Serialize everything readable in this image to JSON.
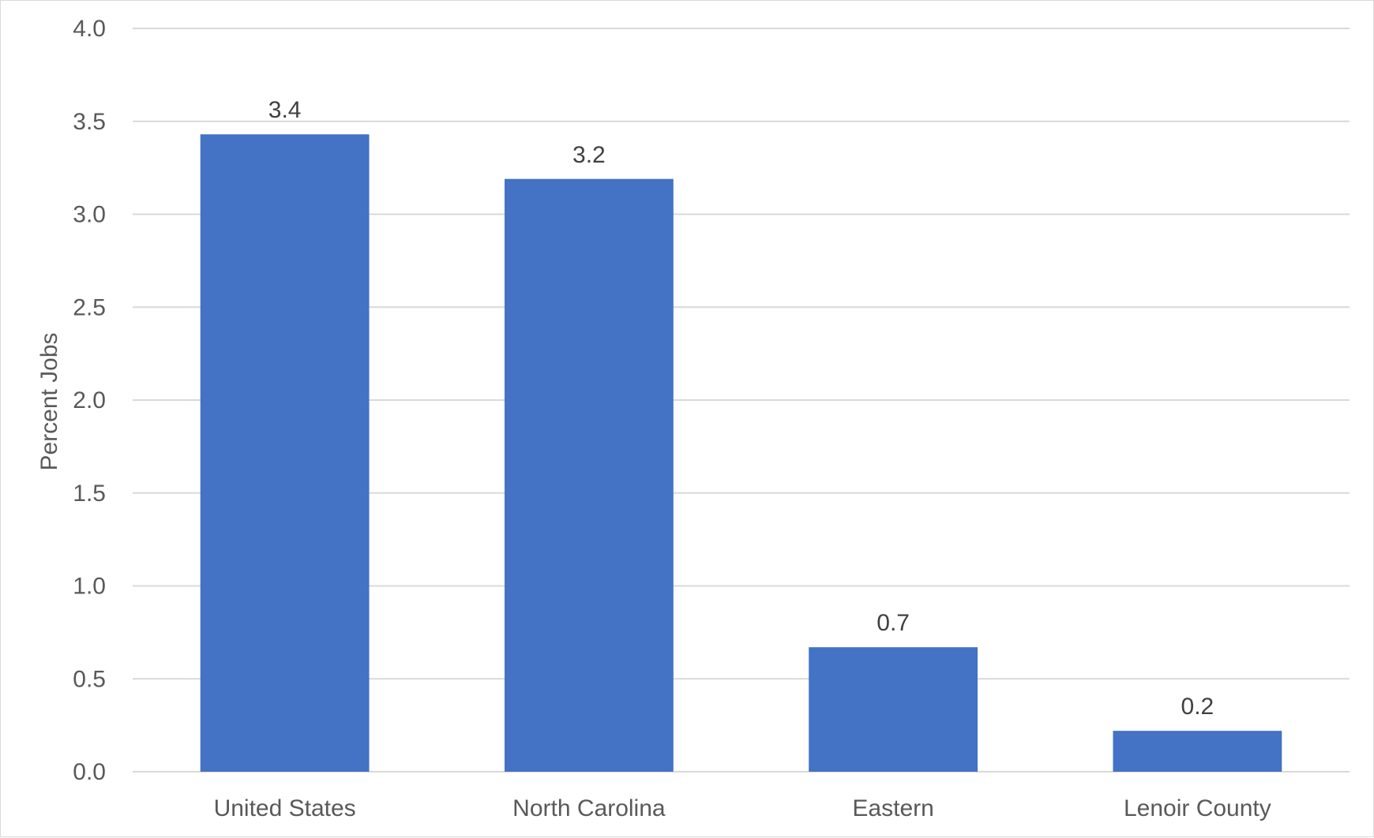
{
  "chart_data": {
    "type": "bar",
    "categories": [
      "United States",
      "North Carolina",
      "Eastern",
      "Lenoir County"
    ],
    "values": [
      3.43,
      3.19,
      0.67,
      0.22
    ],
    "data_labels": [
      "3.4",
      "3.2",
      "0.7",
      "0.2"
    ],
    "title": "",
    "xlabel": "",
    "ylabel": "Percent Jobs",
    "ylim": [
      0,
      4.0
    ],
    "yticks": [
      "0.0",
      "0.5",
      "1.0",
      "1.5",
      "2.0",
      "2.5",
      "3.0",
      "3.5",
      "4.0"
    ],
    "grid": true,
    "legend": "none",
    "bar_color": "#4472C4"
  }
}
